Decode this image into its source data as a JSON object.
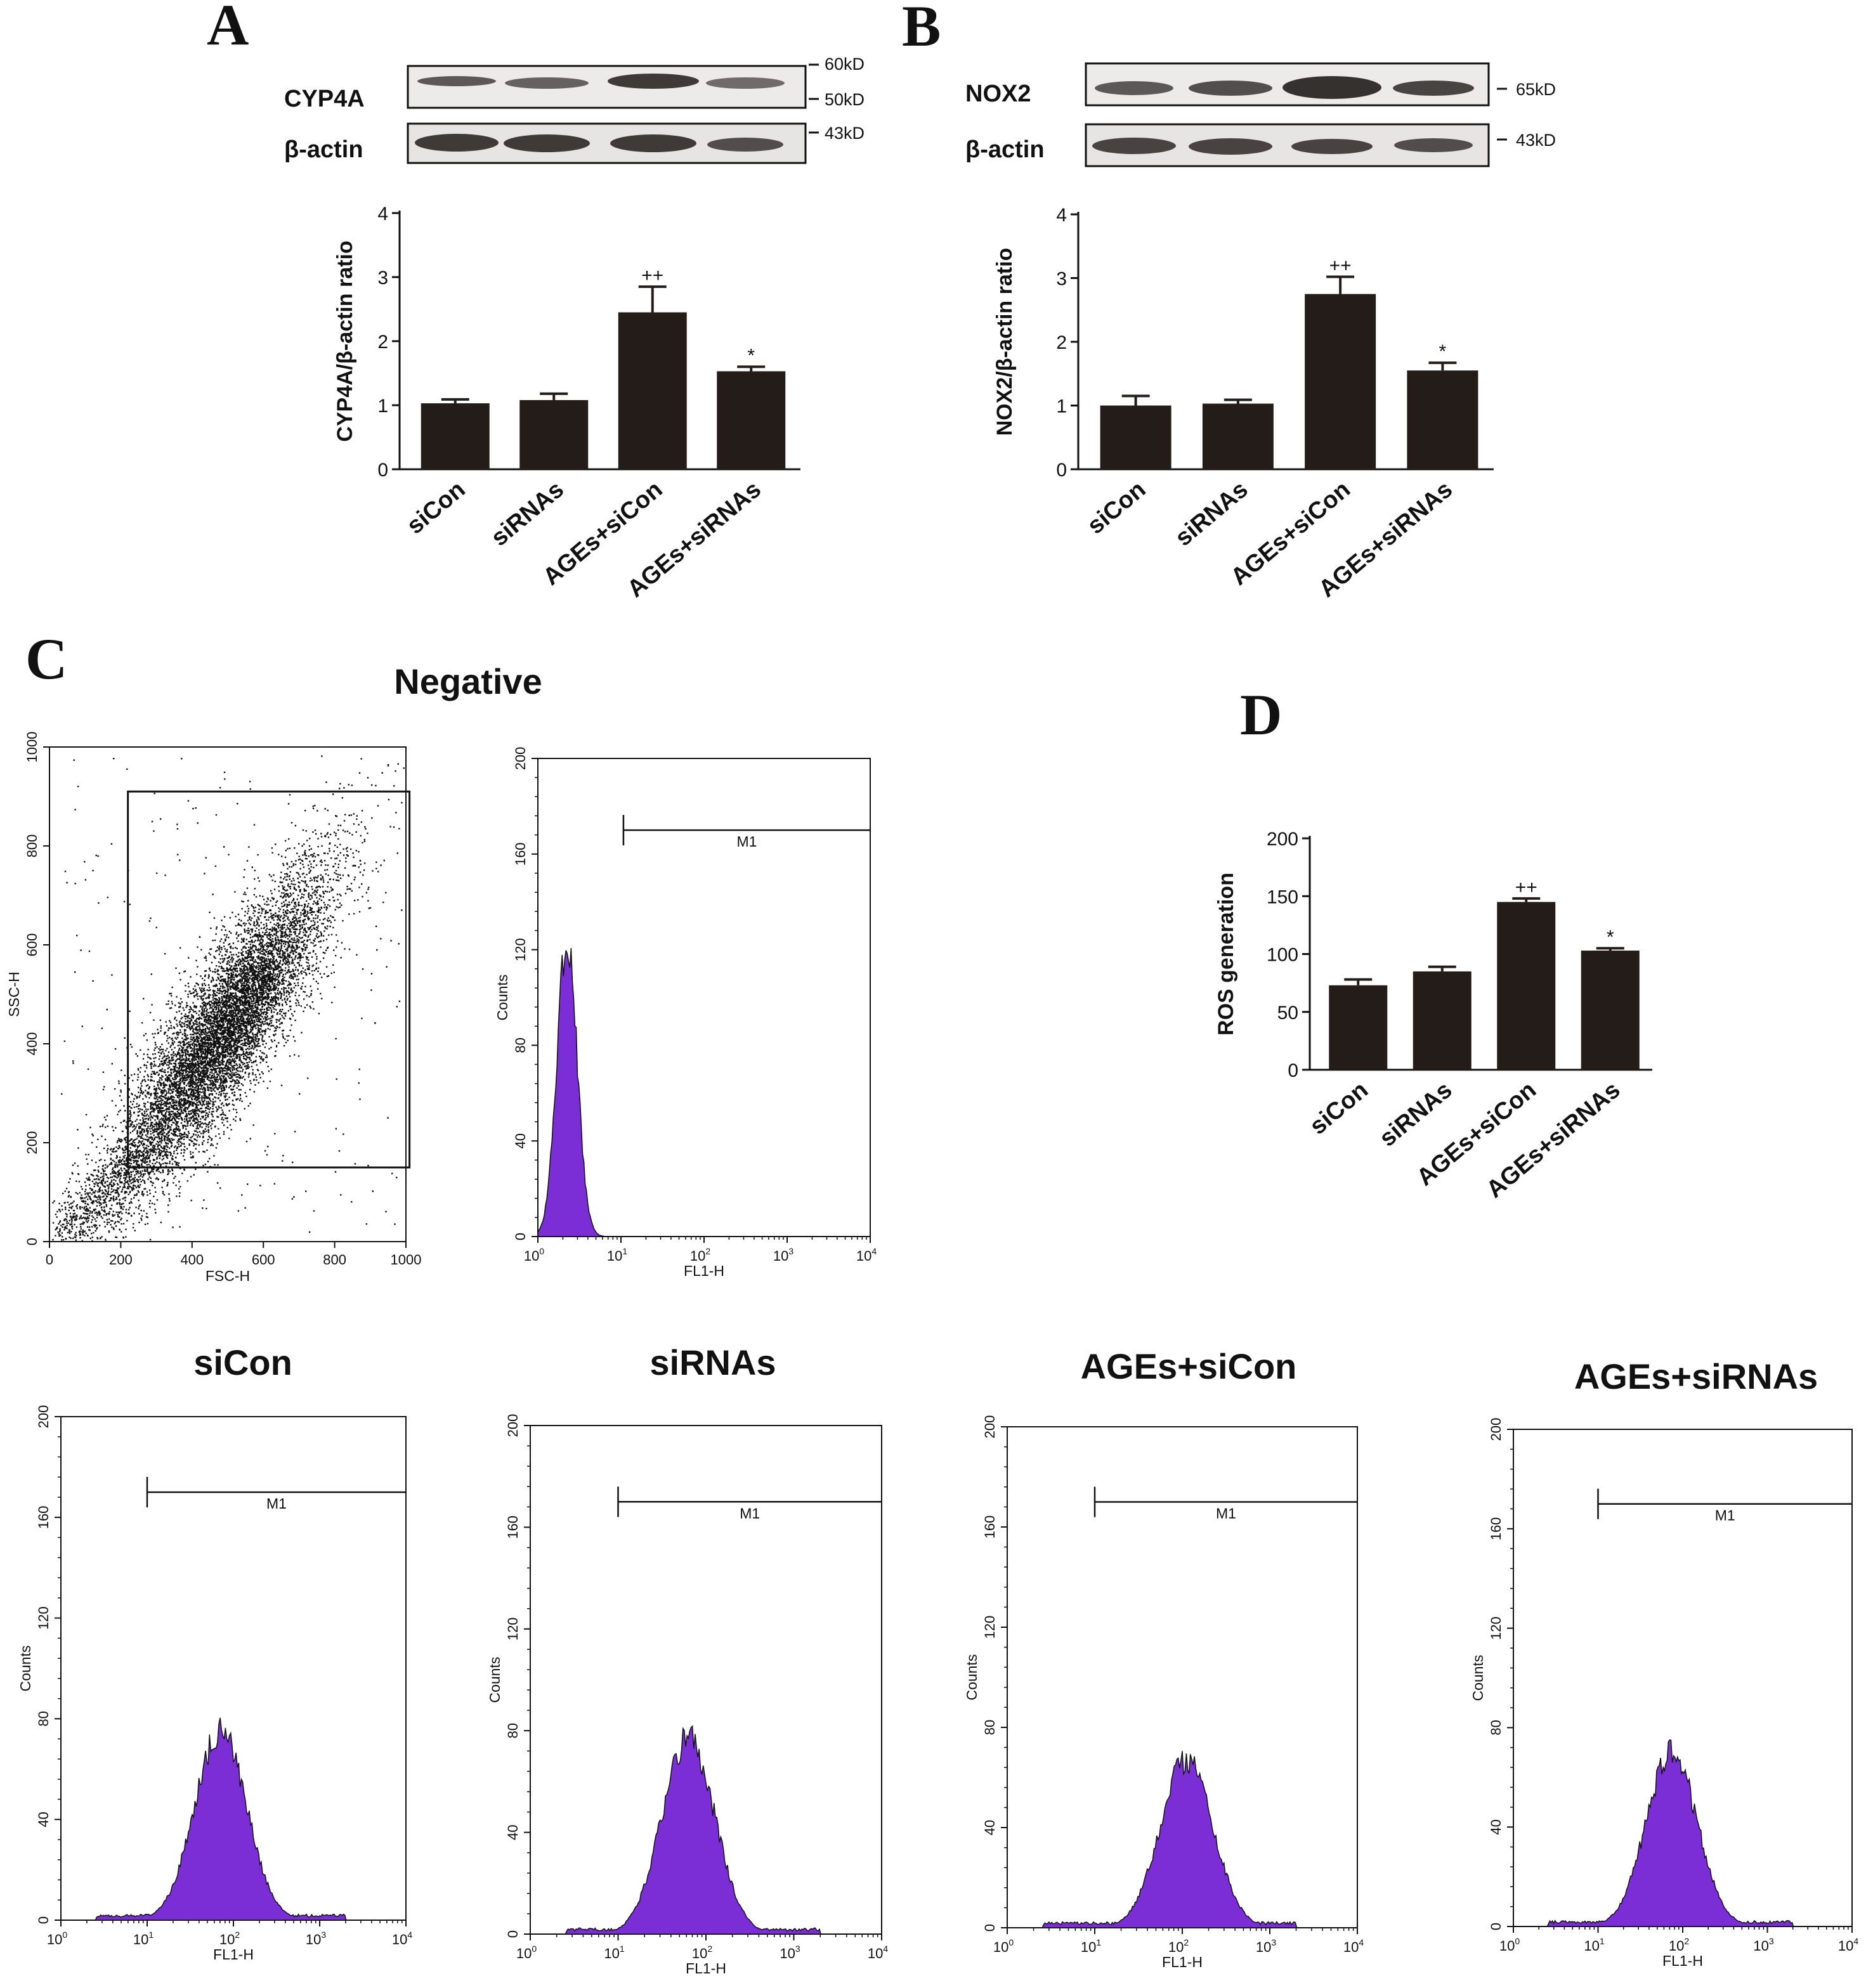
{
  "panels": {
    "A": "A",
    "B": "B",
    "C": "C",
    "D": "D"
  },
  "colors": {
    "bar": "#231c19",
    "histogram_fill": "#7b2ed6",
    "blot_bg": "#ecebea",
    "band": "#2b2725"
  },
  "blots": [
    {
      "panel": "A",
      "target_label": "CYP4A",
      "loading_label": "β-actin",
      "target_markers": [
        "60kD",
        "50kD"
      ],
      "loading_markers": [
        "43kD"
      ]
    },
    {
      "panel": "B",
      "target_label": "NOX2",
      "loading_label": "β-actin",
      "target_markers": [
        "65kD"
      ],
      "loading_markers": [
        "43kD"
      ]
    }
  ],
  "chart_data": [
    {
      "id": "A",
      "type": "bar",
      "categories": [
        "siCon",
        "siRNAs",
        "AGEs+siCon",
        "AGEs+siRNAs"
      ],
      "values": [
        1.03,
        1.08,
        2.45,
        1.53
      ],
      "errors": [
        0.06,
        0.1,
        0.4,
        0.07
      ],
      "significance": [
        "",
        "",
        "++",
        "*"
      ],
      "ylabel": "CYP4A/β-actin  ratio",
      "ylim": [
        0,
        4
      ],
      "yticks": [
        "0",
        "1",
        "2",
        "3",
        "4"
      ]
    },
    {
      "id": "B",
      "type": "bar",
      "categories": [
        "siCon",
        "siRNAs",
        "AGEs+siCon",
        "AGEs+siRNAs"
      ],
      "values": [
        1.0,
        1.03,
        2.75,
        1.55
      ],
      "errors": [
        0.15,
        0.06,
        0.27,
        0.12
      ],
      "significance": [
        "",
        "",
        "++",
        "*"
      ],
      "ylabel": "NOX2/β-actin  ratio",
      "ylim": [
        0,
        4
      ],
      "yticks": [
        "0",
        "1",
        "2",
        "3",
        "4"
      ]
    },
    {
      "id": "D",
      "type": "bar",
      "categories": [
        "siCon",
        "siRNAs",
        "AGEs+siCon",
        "AGEs+siRNAs"
      ],
      "values": [
        73,
        85,
        145,
        103
      ],
      "errors": [
        5,
        4,
        3,
        2
      ],
      "significance": [
        "",
        "",
        "++",
        "*"
      ],
      "ylabel": "ROS generation",
      "ylim": [
        0,
        200
      ],
      "yticks": [
        "0",
        "50",
        "100",
        "150",
        "200"
      ]
    },
    {
      "id": "C-scatter",
      "type": "scatter",
      "title": "Negative",
      "xlabel": "FSC-H",
      "ylabel": "SSC-H",
      "xlim": [
        0,
        1000
      ],
      "ylim": [
        0,
        1000
      ],
      "xticks": [
        "0",
        "200",
        "400",
        "600",
        "800",
        "1000"
      ],
      "yticks": [
        "0",
        "200",
        "400",
        "600",
        "800",
        "1000"
      ],
      "gate": {
        "x": [
          220,
          1010
        ],
        "y": [
          150,
          910
        ]
      },
      "cloud_center": [
        480,
        420
      ]
    },
    {
      "id": "C-negative-hist",
      "type": "area",
      "xlabel": "FL1-H",
      "ylabel": "Counts",
      "ylim": [
        0,
        200
      ],
      "yticks": [
        "0",
        "40",
        "80",
        "120",
        "160",
        "200"
      ],
      "xticks_base": "10",
      "xticks_exp": [
        "0",
        "1",
        "2",
        "3",
        "4"
      ],
      "peak_log10": 0.35,
      "peak_count": 125,
      "width_log10": 0.12,
      "marker": {
        "label": "M1",
        "start_log10": 1.03,
        "end_log10": 4.0,
        "y": 170
      }
    },
    {
      "id": "siCon",
      "type": "area",
      "title": "siCon",
      "xlabel": "FL1-H",
      "ylabel": "Counts",
      "ylim": [
        0,
        200
      ],
      "yticks": [
        "0",
        "40",
        "80",
        "120",
        "160",
        "200"
      ],
      "xticks_base": "10",
      "xticks_exp": [
        "0",
        "1",
        "2",
        "3",
        "4"
      ],
      "peak_log10": 1.85,
      "peak_count": 75,
      "width_log10": 0.3,
      "marker": {
        "label": "M1",
        "start_log10": 1.0,
        "end_log10": 4.0,
        "y": 170
      }
    },
    {
      "id": "siRNAs",
      "type": "area",
      "title": "siRNAs",
      "xlabel": "FL1-H",
      "ylabel": "Counts",
      "ylim": [
        0,
        200
      ],
      "yticks": [
        "0",
        "40",
        "80",
        "120",
        "160",
        "200"
      ],
      "xticks_base": "10",
      "xticks_exp": [
        "0",
        "1",
        "2",
        "3",
        "4"
      ],
      "peak_log10": 1.8,
      "peak_count": 77,
      "width_log10": 0.3,
      "marker": {
        "label": "M1",
        "start_log10": 1.0,
        "end_log10": 4.0,
        "y": 170
      }
    },
    {
      "id": "AGEs+siCon",
      "type": "area",
      "title": "AGEs+siCon",
      "xlabel": "FL1-H",
      "ylabel": "Counts",
      "ylim": [
        0,
        200
      ],
      "yticks": [
        "0",
        "40",
        "80",
        "120",
        "160",
        "200"
      ],
      "xticks_base": "10",
      "xticks_exp": [
        "0",
        "1",
        "2",
        "3",
        "4"
      ],
      "peak_log10": 2.05,
      "peak_count": 67,
      "width_log10": 0.3,
      "marker": {
        "label": "M1",
        "start_log10": 1.0,
        "end_log10": 4.0,
        "y": 170
      }
    },
    {
      "id": "AGEs+siRNAs",
      "type": "area",
      "title": "AGEs+siRNAs",
      "xlabel": "FL1-H",
      "ylabel": "Counts",
      "ylim": [
        0,
        200
      ],
      "yticks": [
        "0",
        "40",
        "80",
        "120",
        "160",
        "200"
      ],
      "xticks_base": "10",
      "xticks_exp": [
        "0",
        "1",
        "2",
        "3",
        "4"
      ],
      "peak_log10": 1.87,
      "peak_count": 70,
      "width_log10": 0.3,
      "marker": {
        "label": "M1",
        "start_log10": 1.0,
        "end_log10": 4.0,
        "y": 170
      }
    }
  ]
}
